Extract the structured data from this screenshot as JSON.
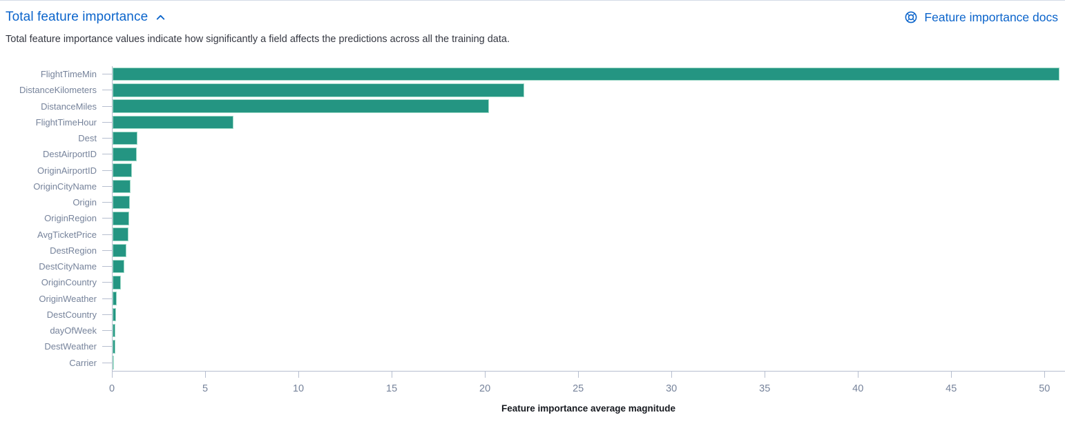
{
  "header": {
    "title": "Total feature importance",
    "docs_link_label": "Feature importance docs",
    "description": "Total feature importance values indicate how significantly a field affects the predictions across all the training data.",
    "icons": {
      "collapse": "chevron-up-icon",
      "docs": "life-ring-icon"
    }
  },
  "colors": {
    "accent_blue": "#0b64cb",
    "bar_fill": "#249582",
    "bar_border": "#9fdac8",
    "axis_line": "#b6becf",
    "axis_label_gray": "#76839b",
    "body_text": "#343741",
    "axis_title_black": "#16191f",
    "panel_border": "#d3dae6"
  },
  "chart_data": {
    "type": "bar",
    "orientation": "horizontal",
    "title": "Total feature importance",
    "xlabel": "Feature importance average magnitude",
    "ylabel": "",
    "categories": [
      "FlightTimeMin",
      "DistanceKilometers",
      "DistanceMiles",
      "FlightTimeHour",
      "Dest",
      "DestAirportID",
      "OriginAirportID",
      "OriginCityName",
      "Origin",
      "OriginRegion",
      "AvgTicketPrice",
      "DestRegion",
      "DestCityName",
      "OriginCountry",
      "OriginWeather",
      "DestCountry",
      "dayOfWeek",
      "DestWeather",
      "Carrier"
    ],
    "values": [
      50.8,
      22.1,
      20.2,
      6.5,
      1.35,
      1.3,
      1.05,
      0.97,
      0.94,
      0.9,
      0.85,
      0.73,
      0.62,
      0.44,
      0.22,
      0.18,
      0.16,
      0.13,
      0.05
    ],
    "xticks": [
      0,
      5,
      10,
      15,
      20,
      25,
      30,
      35,
      40,
      45,
      50
    ],
    "xlim": [
      0,
      51.1
    ],
    "grid": false,
    "legend": false
  }
}
